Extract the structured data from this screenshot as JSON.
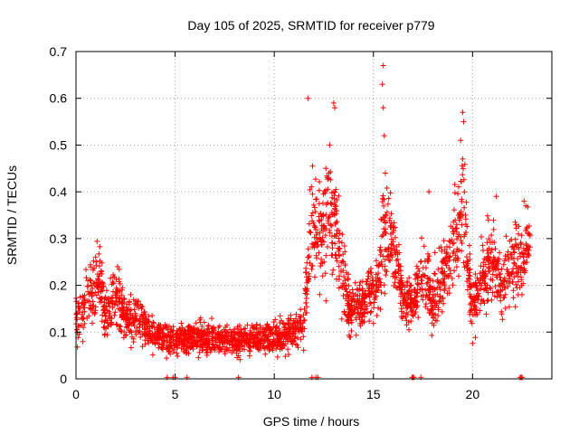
{
  "chart_data": {
    "type": "scatter",
    "title": "Day 105 of 2025, SRMTID for receiver p779",
    "xlabel": "GPS time / hours",
    "ylabel": "SRMTID / TECUs",
    "xlim": [
      0,
      24
    ],
    "ylim": [
      0,
      0.7
    ],
    "xticks": [
      0,
      5,
      10,
      15,
      20
    ],
    "yticks": [
      0,
      0.1,
      0.2,
      0.3,
      0.4,
      0.5,
      0.6,
      0.7
    ],
    "xtick_labels": [
      "0",
      "5",
      "10",
      "15",
      "20"
    ],
    "ytick_labels": [
      "0",
      "0.1",
      "0.2",
      "0.3",
      "0.4",
      "0.5",
      "0.6",
      "0.7"
    ],
    "grid": true,
    "marker": "plus",
    "color": "#ff0000",
    "series": [
      {
        "name": "SRMTID",
        "profile": [
          [
            0.0,
            0.12,
            0.06
          ],
          [
            0.5,
            0.17,
            0.06
          ],
          [
            1.0,
            0.2,
            0.07
          ],
          [
            1.2,
            0.22,
            0.06
          ],
          [
            1.5,
            0.13,
            0.05
          ],
          [
            2.0,
            0.18,
            0.07
          ],
          [
            2.5,
            0.13,
            0.05
          ],
          [
            3.0,
            0.13,
            0.05
          ],
          [
            3.5,
            0.11,
            0.04
          ],
          [
            4.0,
            0.09,
            0.03
          ],
          [
            5.0,
            0.085,
            0.03
          ],
          [
            6.0,
            0.09,
            0.035
          ],
          [
            7.0,
            0.085,
            0.03
          ],
          [
            8.0,
            0.08,
            0.03
          ],
          [
            9.0,
            0.085,
            0.03
          ],
          [
            10.0,
            0.09,
            0.035
          ],
          [
            11.0,
            0.1,
            0.035
          ],
          [
            11.5,
            0.12,
            0.04
          ],
          [
            11.8,
            0.3,
            0.1
          ],
          [
            12.3,
            0.33,
            0.12
          ],
          [
            12.8,
            0.38,
            0.12
          ],
          [
            13.3,
            0.25,
            0.1
          ],
          [
            13.8,
            0.15,
            0.05
          ],
          [
            14.5,
            0.16,
            0.05
          ],
          [
            15.2,
            0.2,
            0.07
          ],
          [
            15.5,
            0.32,
            0.15
          ],
          [
            16.0,
            0.28,
            0.08
          ],
          [
            16.5,
            0.17,
            0.05
          ],
          [
            17.0,
            0.16,
            0.04
          ],
          [
            17.5,
            0.22,
            0.09
          ],
          [
            18.0,
            0.16,
            0.06
          ],
          [
            18.5,
            0.22,
            0.07
          ],
          [
            19.0,
            0.28,
            0.1
          ],
          [
            19.5,
            0.35,
            0.12
          ],
          [
            20.0,
            0.15,
            0.06
          ],
          [
            20.5,
            0.22,
            0.08
          ],
          [
            21.0,
            0.25,
            0.08
          ],
          [
            21.5,
            0.2,
            0.06
          ],
          [
            22.0,
            0.27,
            0.08
          ],
          [
            22.5,
            0.25,
            0.08
          ],
          [
            22.8,
            0.3,
            0.06
          ]
        ],
        "outliers": [
          [
            11.7,
            0.6
          ],
          [
            12.6,
            0.45
          ],
          [
            12.8,
            0.5
          ],
          [
            13.0,
            0.59
          ],
          [
            13.05,
            0.58
          ],
          [
            15.5,
            0.67
          ],
          [
            15.45,
            0.63
          ],
          [
            15.5,
            0.58
          ],
          [
            15.55,
            0.52
          ],
          [
            15.6,
            0.44
          ],
          [
            19.5,
            0.57
          ],
          [
            19.55,
            0.55
          ],
          [
            19.4,
            0.51
          ],
          [
            19.5,
            0.47
          ],
          [
            17.8,
            0.4
          ],
          [
            18.1,
            0.27
          ],
          [
            20.8,
            0.34
          ],
          [
            21.2,
            0.39
          ],
          [
            22.6,
            0.38
          ]
        ],
        "zero_markers": [
          4.6,
          4.9,
          5.0,
          5.6,
          8.2,
          11.9,
          12.1,
          12.2,
          16.95,
          17.0,
          17.05,
          17.4,
          22.4,
          22.45,
          22.5
        ],
        "x_range": [
          0.0,
          22.9
        ],
        "approx_points": 2600
      }
    ]
  }
}
